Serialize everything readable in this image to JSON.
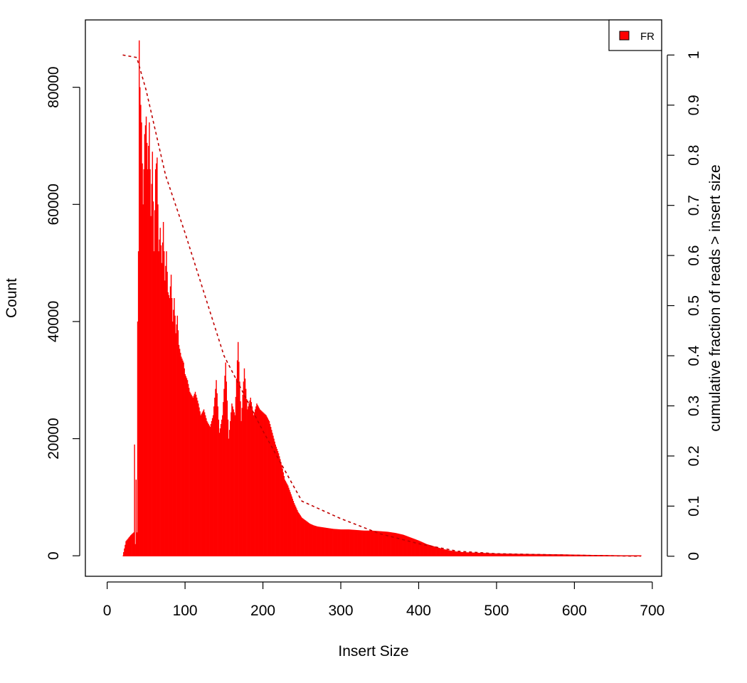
{
  "chart_data": {
    "type": "bar",
    "title": "",
    "xlabel": "Insert Size",
    "ylabel": "Count",
    "y2label": "cumulative fraction of reads > insert size",
    "xlim": [
      -28,
      712
    ],
    "ylim": [
      -3500,
      91500
    ],
    "y2lim": [
      -0.04,
      1.07
    ],
    "x_ticks": [
      0,
      100,
      200,
      300,
      400,
      500,
      600,
      700
    ],
    "y_ticks": [
      0,
      20000,
      40000,
      60000,
      80000
    ],
    "y2_ticks": [
      0,
      0.1,
      0.2,
      0.3,
      0.4,
      0.5,
      0.6,
      0.7,
      0.8,
      0.9,
      1
    ],
    "y2_tick_labels": [
      "0",
      "0.1",
      "0.2",
      "0.3",
      "0.4",
      "0.5",
      "0.6",
      "0.7",
      "0.8",
      "0.9",
      "1"
    ],
    "grid": false,
    "legend": {
      "position": "top-right",
      "entries": [
        {
          "label": "FR",
          "color": "#ff0000"
        }
      ]
    },
    "series": [
      {
        "name": "FR",
        "color": "#ff0000",
        "histogram_points": [
          [
            20,
            0
          ],
          [
            24,
            2500
          ],
          [
            30,
            3500
          ],
          [
            34,
            4000
          ],
          [
            35,
            19000
          ],
          [
            36,
            2000
          ],
          [
            37,
            13000
          ],
          [
            38,
            4000
          ],
          [
            39,
            40000
          ],
          [
            40,
            52000
          ],
          [
            41,
            88000
          ],
          [
            42,
            80000
          ],
          [
            44,
            74000
          ],
          [
            46,
            60000
          ],
          [
            48,
            72000
          ],
          [
            50,
            75000
          ],
          [
            52,
            66000
          ],
          [
            54,
            74000
          ],
          [
            56,
            58000
          ],
          [
            58,
            69000
          ],
          [
            60,
            52000
          ],
          [
            62,
            66000
          ],
          [
            64,
            68000
          ],
          [
            66,
            52000
          ],
          [
            68,
            56000
          ],
          [
            70,
            50000
          ],
          [
            72,
            57000
          ],
          [
            74,
            47000
          ],
          [
            76,
            52000
          ],
          [
            78,
            45000
          ],
          [
            80,
            44000
          ],
          [
            82,
            48000
          ],
          [
            84,
            40000
          ],
          [
            86,
            44000
          ],
          [
            88,
            38000
          ],
          [
            90,
            41000
          ],
          [
            92,
            36000
          ],
          [
            95,
            34000
          ],
          [
            98,
            33000
          ],
          [
            100,
            31000
          ],
          [
            103,
            30000
          ],
          [
            106,
            28000
          ],
          [
            110,
            27000
          ],
          [
            113,
            28000
          ],
          [
            117,
            26000
          ],
          [
            120,
            24000
          ],
          [
            124,
            25000
          ],
          [
            128,
            23000
          ],
          [
            132,
            22000
          ],
          [
            136,
            24000
          ],
          [
            140,
            30000
          ],
          [
            144,
            21000
          ],
          [
            148,
            24000
          ],
          [
            152,
            33000
          ],
          [
            156,
            20000
          ],
          [
            160,
            26000
          ],
          [
            164,
            24000
          ],
          [
            168,
            36500
          ],
          [
            172,
            23000
          ],
          [
            176,
            32000
          ],
          [
            180,
            25000
          ],
          [
            184,
            27000
          ],
          [
            188,
            24000
          ],
          [
            192,
            26000
          ],
          [
            196,
            25000
          ],
          [
            200,
            24500
          ],
          [
            204,
            24000
          ],
          [
            208,
            23000
          ],
          [
            212,
            21000
          ],
          [
            216,
            19000
          ],
          [
            220,
            17500
          ],
          [
            224,
            15500
          ],
          [
            228,
            13000
          ],
          [
            232,
            12000
          ],
          [
            236,
            10500
          ],
          [
            240,
            9000
          ],
          [
            245,
            7500
          ],
          [
            250,
            6500
          ],
          [
            255,
            6000
          ],
          [
            260,
            5500
          ],
          [
            265,
            5200
          ],
          [
            270,
            5000
          ],
          [
            280,
            4800
          ],
          [
            290,
            4600
          ],
          [
            300,
            4500
          ],
          [
            310,
            4500
          ],
          [
            320,
            4400
          ],
          [
            330,
            4300
          ],
          [
            340,
            4300
          ],
          [
            350,
            4200
          ],
          [
            360,
            4100
          ],
          [
            370,
            3900
          ],
          [
            380,
            3600
          ],
          [
            390,
            3100
          ],
          [
            400,
            2600
          ],
          [
            410,
            2000
          ],
          [
            420,
            1600
          ],
          [
            430,
            1200
          ],
          [
            440,
            900
          ],
          [
            450,
            700
          ],
          [
            460,
            600
          ],
          [
            480,
            500
          ],
          [
            500,
            400
          ],
          [
            520,
            350
          ],
          [
            550,
            300
          ],
          [
            580,
            250
          ],
          [
            600,
            200
          ],
          [
            620,
            150
          ],
          [
            650,
            100
          ],
          [
            685,
            50
          ],
          [
            686,
            0
          ]
        ]
      },
      {
        "name": "",
        "axis": "right",
        "style": "dashed",
        "color": "#c00000",
        "cumulative_points": [
          [
            20,
            1.0
          ],
          [
            38,
            0.995
          ],
          [
            50,
            0.93
          ],
          [
            75,
            0.76
          ],
          [
            100,
            0.645
          ],
          [
            150,
            0.4
          ],
          [
            200,
            0.25
          ],
          [
            250,
            0.11
          ],
          [
            300,
            0.075
          ],
          [
            350,
            0.045
          ],
          [
            400,
            0.025
          ],
          [
            450,
            0.01
          ],
          [
            500,
            0.005
          ],
          [
            600,
            0.002
          ],
          [
            685,
            0
          ]
        ]
      }
    ]
  }
}
